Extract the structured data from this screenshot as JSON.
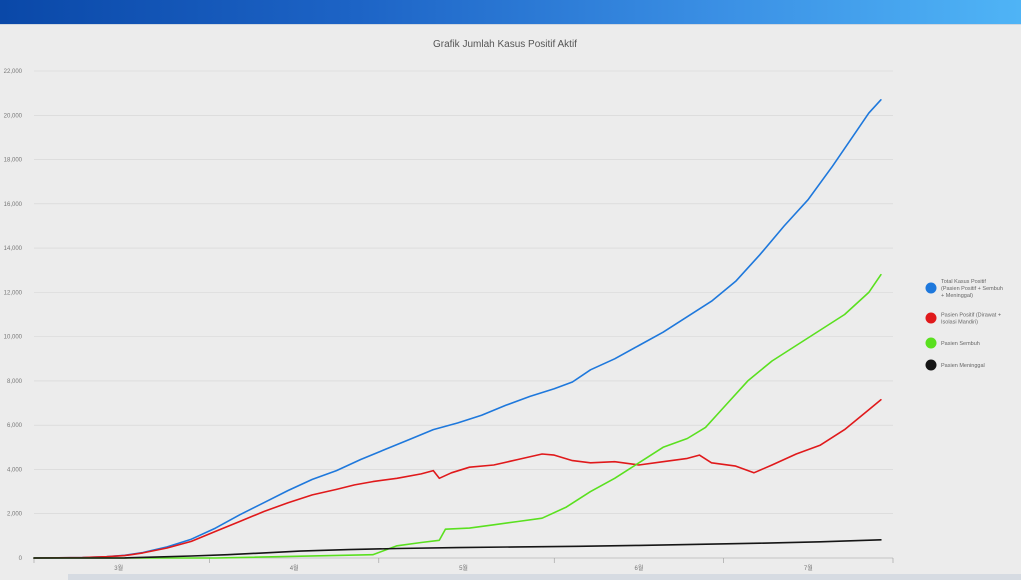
{
  "chart_data": {
    "type": "line",
    "title": "Grafik Jumlah Kasus Positif Aktif",
    "xlabel": "",
    "ylabel": "",
    "ylim": [
      0,
      22000
    ],
    "y_ticks": [
      "0",
      "2,000",
      "4,000",
      "6,000",
      "8,000",
      "10,000",
      "12,000",
      "14,000",
      "16,000",
      "18,000",
      "20,000",
      "22,000"
    ],
    "y_tick_values": [
      0,
      2000,
      4000,
      6000,
      8000,
      10000,
      12000,
      14000,
      16000,
      18000,
      20000,
      22000
    ],
    "x_range": [
      0,
      142
    ],
    "x_ticks": [
      {
        "label": "3월",
        "x": 14
      },
      {
        "label": "4월",
        "x": 43
      },
      {
        "label": "5월",
        "x": 71
      },
      {
        "label": "6월",
        "x": 100
      },
      {
        "label": "7월",
        "x": 128
      }
    ],
    "x_boundaries": [
      0,
      29,
      57,
      86,
      114,
      142
    ],
    "grid": true,
    "legend_position": "right",
    "series": [
      {
        "name": "Total Kasus Positif (Pasien Positif + Sembuh + Meninggal)",
        "legend_lines": [
          "Total Kasus Positif",
          "(Pasien Positif + Sembuh",
          "+ Meninggal)"
        ],
        "color": "#1e78dc",
        "points": [
          [
            0,
            0
          ],
          [
            8,
            20
          ],
          [
            12,
            60
          ],
          [
            15,
            120
          ],
          [
            18,
            250
          ],
          [
            22,
            500
          ],
          [
            26,
            850
          ],
          [
            30,
            1350
          ],
          [
            34,
            1950
          ],
          [
            38,
            2500
          ],
          [
            42,
            3050
          ],
          [
            46,
            3550
          ],
          [
            50,
            3950
          ],
          [
            54,
            4450
          ],
          [
            58,
            4900
          ],
          [
            62,
            5350
          ],
          [
            66,
            5800
          ],
          [
            70,
            6100
          ],
          [
            74,
            6450
          ],
          [
            78,
            6900
          ],
          [
            82,
            7300
          ],
          [
            86,
            7650
          ],
          [
            89,
            7950
          ],
          [
            92,
            8500
          ],
          [
            96,
            9000
          ],
          [
            100,
            9600
          ],
          [
            104,
            10200
          ],
          [
            108,
            10900
          ],
          [
            112,
            11600
          ],
          [
            116,
            12500
          ],
          [
            120,
            13700
          ],
          [
            124,
            15000
          ],
          [
            128,
            16200
          ],
          [
            132,
            17700
          ],
          [
            136,
            19300
          ],
          [
            138,
            20100
          ],
          [
            140,
            20700
          ]
        ]
      },
      {
        "name": "Pasien Positif (Dirawat + Isolasi Mandiri)",
        "legend_lines": [
          "Pasien Positif (Dirawat +",
          "Isolasi Mandiri)"
        ],
        "color": "#e0191b",
        "points": [
          [
            0,
            0
          ],
          [
            8,
            20
          ],
          [
            12,
            60
          ],
          [
            15,
            110
          ],
          [
            18,
            230
          ],
          [
            22,
            450
          ],
          [
            26,
            750
          ],
          [
            30,
            1200
          ],
          [
            34,
            1650
          ],
          [
            38,
            2100
          ],
          [
            42,
            2500
          ],
          [
            46,
            2850
          ],
          [
            50,
            3100
          ],
          [
            53,
            3300
          ],
          [
            56,
            3450
          ],
          [
            60,
            3600
          ],
          [
            64,
            3800
          ],
          [
            66,
            3950
          ],
          [
            67,
            3600
          ],
          [
            69,
            3850
          ],
          [
            72,
            4100
          ],
          [
            76,
            4200
          ],
          [
            80,
            4450
          ],
          [
            84,
            4700
          ],
          [
            86,
            4650
          ],
          [
            89,
            4400
          ],
          [
            92,
            4300
          ],
          [
            96,
            4350
          ],
          [
            100,
            4200
          ],
          [
            104,
            4350
          ],
          [
            108,
            4500
          ],
          [
            110,
            4650
          ],
          [
            112,
            4300
          ],
          [
            116,
            4150
          ],
          [
            119,
            3850
          ],
          [
            122,
            4200
          ],
          [
            126,
            4700
          ],
          [
            130,
            5100
          ],
          [
            134,
            5800
          ],
          [
            138,
            6700
          ],
          [
            140,
            7150
          ]
        ]
      },
      {
        "name": "Pasien Sembuh",
        "legend_lines": [
          "Pasien Sembuh"
        ],
        "color": "#5ae01f",
        "points": [
          [
            0,
            0
          ],
          [
            30,
            0
          ],
          [
            56,
            150
          ],
          [
            60,
            550
          ],
          [
            64,
            700
          ],
          [
            67,
            800
          ],
          [
            68,
            1300
          ],
          [
            72,
            1350
          ],
          [
            76,
            1500
          ],
          [
            80,
            1650
          ],
          [
            84,
            1800
          ],
          [
            88,
            2300
          ],
          [
            92,
            3000
          ],
          [
            96,
            3600
          ],
          [
            100,
            4300
          ],
          [
            104,
            5000
          ],
          [
            108,
            5400
          ],
          [
            111,
            5900
          ],
          [
            114,
            6800
          ],
          [
            118,
            8000
          ],
          [
            122,
            8900
          ],
          [
            126,
            9600
          ],
          [
            130,
            10300
          ],
          [
            134,
            11000
          ],
          [
            138,
            12000
          ],
          [
            140,
            12800
          ]
        ]
      },
      {
        "name": "Pasien Meninggal",
        "legend_lines": [
          "Pasien Meninggal"
        ],
        "color": "#151515",
        "points": [
          [
            0,
            0
          ],
          [
            15,
            5
          ],
          [
            20,
            40
          ],
          [
            26,
            90
          ],
          [
            32,
            150
          ],
          [
            38,
            230
          ],
          [
            44,
            310
          ],
          [
            52,
            380
          ],
          [
            60,
            430
          ],
          [
            70,
            470
          ],
          [
            80,
            500
          ],
          [
            90,
            530
          ],
          [
            100,
            570
          ],
          [
            110,
            620
          ],
          [
            120,
            670
          ],
          [
            130,
            730
          ],
          [
            140,
            820
          ]
        ]
      }
    ]
  }
}
